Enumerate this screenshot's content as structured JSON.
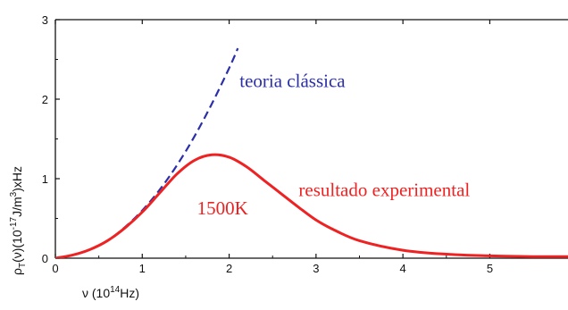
{
  "chart_data": {
    "type": "line",
    "title": "",
    "xlabel": "ν (10<sup>14</sup>Hz)",
    "xlabel_parts": {
      "prefix": "ν (10",
      "sup": "14",
      "suffix": "Hz)"
    },
    "ylabel_parts": {
      "rho": "ρ",
      "sub": "T",
      "mid": "(ν)(10",
      "sup1": "-17",
      "mid2": "J/m",
      "sup2": "3",
      "suffix": ")xHz"
    },
    "xlim": [
      0,
      5.9
    ],
    "ylim": [
      0,
      3
    ],
    "xticks": [
      0,
      1,
      2,
      3,
      4,
      5
    ],
    "yticks": [
      0,
      1,
      2,
      3
    ],
    "grid": false,
    "series": [
      {
        "style": "dashed",
        "color": "#2b2fa8",
        "x": [
          0,
          0.2,
          0.4,
          0.6,
          0.8,
          1.0,
          1.2,
          1.4,
          1.6,
          1.8,
          2.0,
          2.1
        ],
        "y": [
          0,
          0.04,
          0.11,
          0.22,
          0.39,
          0.6,
          0.86,
          1.17,
          1.53,
          1.94,
          2.39,
          2.64
        ]
      },
      {
        "style": "solid",
        "color": "#ee2222",
        "x": [
          0,
          0.2,
          0.4,
          0.6,
          0.8,
          1.0,
          1.2,
          1.4,
          1.6,
          1.8,
          2.0,
          2.2,
          2.4,
          2.6,
          2.8,
          3.0,
          3.2,
          3.5,
          4.0,
          4.5,
          5.0,
          5.5,
          5.9
        ],
        "y": [
          0,
          0.04,
          0.11,
          0.22,
          0.38,
          0.58,
          0.82,
          1.06,
          1.23,
          1.3,
          1.27,
          1.15,
          0.98,
          0.81,
          0.64,
          0.48,
          0.36,
          0.22,
          0.1,
          0.05,
          0.03,
          0.02,
          0.02
        ]
      }
    ],
    "annotations": [
      {
        "text": "teoria clássica",
        "color": "#2b2fa8",
        "x": 2.12,
        "y": 2.15
      },
      {
        "text": "resultado experimental",
        "color": "#ee2222",
        "x": 2.8,
        "y": 0.78
      },
      {
        "text": "1500K",
        "color": "#ee2222",
        "x": 1.63,
        "y": 0.55
      }
    ]
  }
}
